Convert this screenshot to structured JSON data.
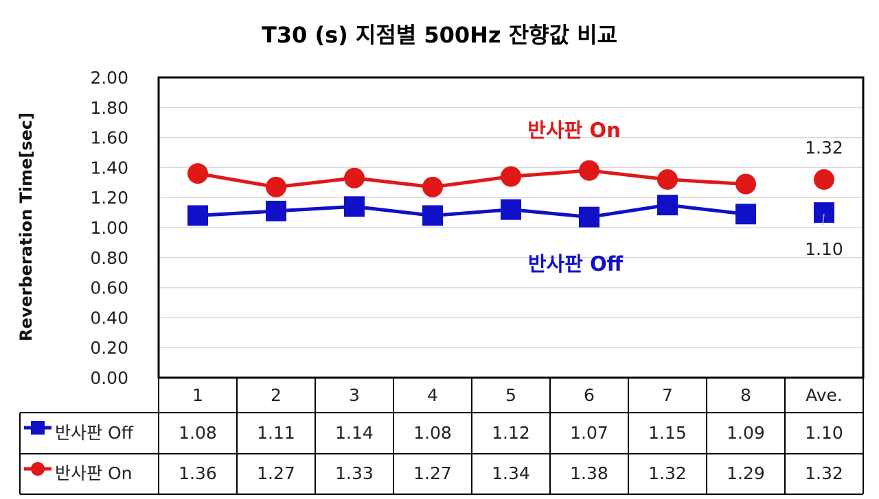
{
  "chart_data": {
    "type": "line",
    "title": "T30 (s) 지점별 500Hz 잔향값 비교",
    "ylabel": "Reverberation Time[sec]",
    "xlabel": "",
    "ylim": [
      0,
      2
    ],
    "yticks": [
      "0.00",
      "0.20",
      "0.40",
      "0.60",
      "0.80",
      "1.00",
      "1.20",
      "1.40",
      "1.60",
      "1.80",
      "2.00"
    ],
    "grid": true,
    "categories": [
      "1",
      "2",
      "3",
      "4",
      "5",
      "6",
      "7",
      "8",
      "Ave."
    ],
    "series": [
      {
        "name": "반사판 Off",
        "values": [
          1.08,
          1.11,
          1.14,
          1.08,
          1.12,
          1.07,
          1.15,
          1.09,
          1.1
        ],
        "display": [
          "1.08",
          "1.11",
          "1.14",
          "1.08",
          "1.12",
          "1.07",
          "1.15",
          "1.09",
          "1.10"
        ],
        "color": "#1010c8",
        "marker": "square"
      },
      {
        "name": "반사판 On",
        "values": [
          1.36,
          1.27,
          1.33,
          1.27,
          1.34,
          1.38,
          1.32,
          1.29,
          1.32
        ],
        "display": [
          "1.36",
          "1.27",
          "1.33",
          "1.27",
          "1.34",
          "1.38",
          "1.32",
          "1.29",
          "1.32"
        ],
        "color": "#e01818",
        "marker": "circle"
      }
    ],
    "annotations": {
      "on_label": "반사판 On",
      "off_label": "반사판 Off",
      "avg_on_label": "1.32",
      "avg_off_label": "1.10"
    },
    "legend_placement": "data-table"
  }
}
